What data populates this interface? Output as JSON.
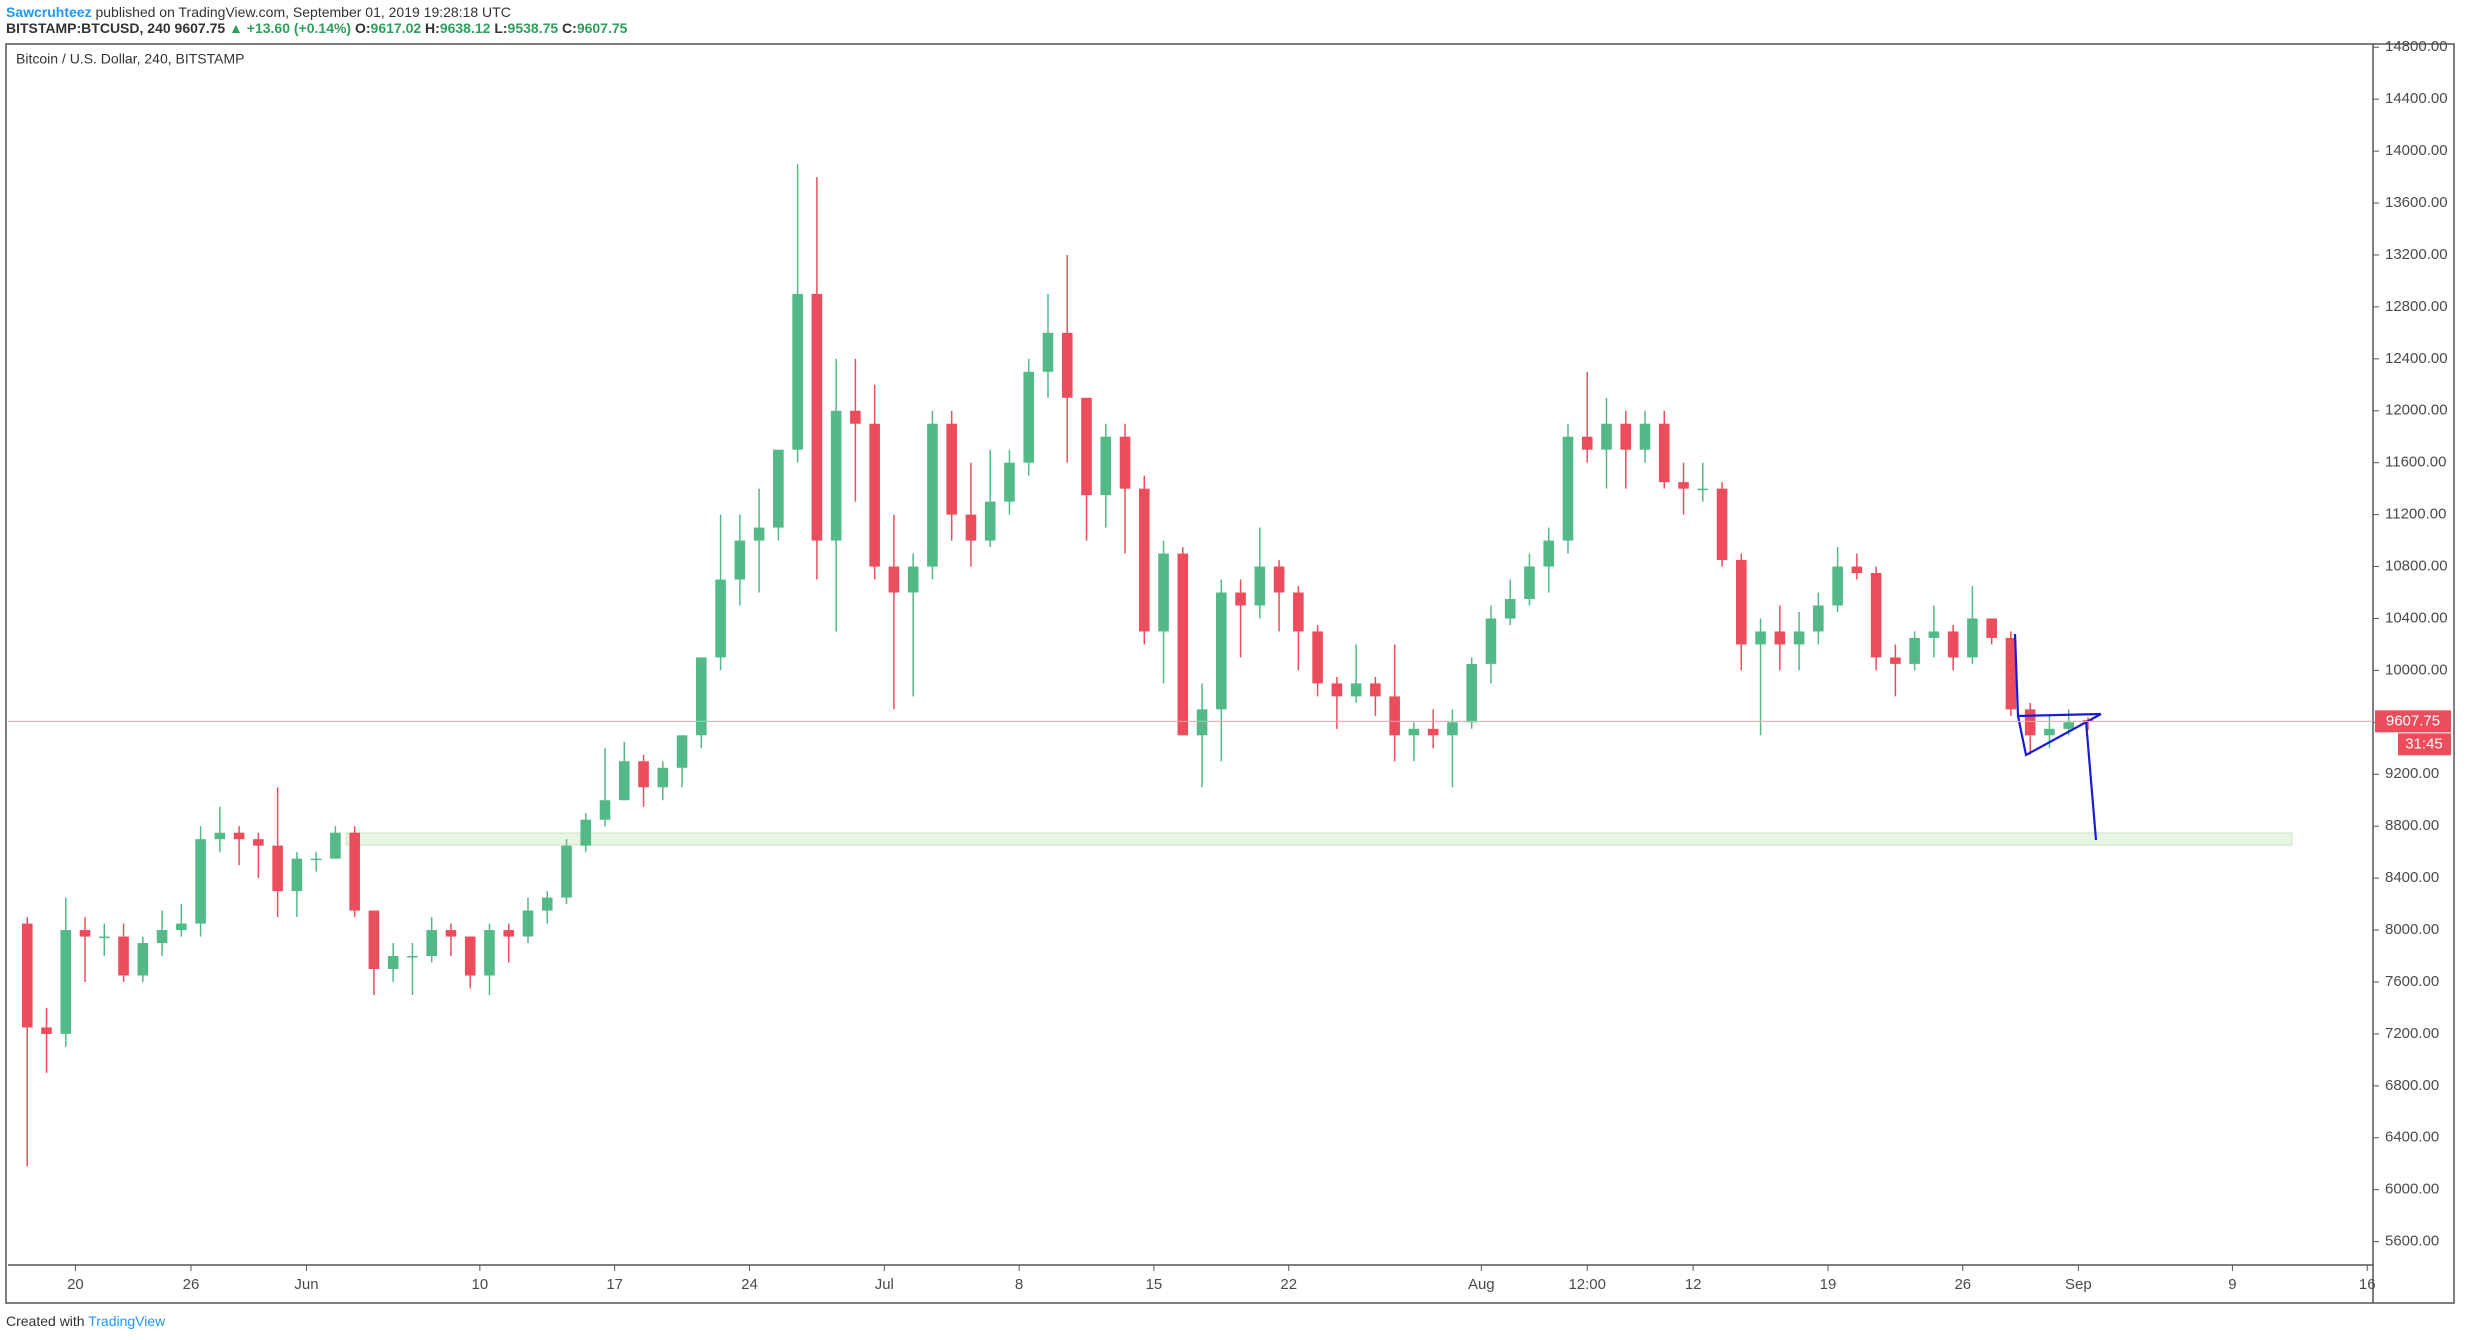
{
  "header": {
    "author": "Sawcruhteez",
    "published": "published on TradingView.com, September 01, 2019 19:28:18 UTC",
    "symbol": "BITSTAMP:BTCUSD, 240",
    "last": "9607.75",
    "change": "▲ +13.60 (+0.14%)",
    "ohlc": [
      {
        "label": "O:",
        "value": "9617.02"
      },
      {
        "label": "H:",
        "value": "9638.12"
      },
      {
        "label": "L:",
        "value": "9538.75"
      },
      {
        "label": "C:",
        "value": "9607.75"
      }
    ]
  },
  "chart_data": {
    "type": "candlestick",
    "title": "Bitcoin / U.S. Dollar, 240, BITSTAMP",
    "up_color": "#53b987",
    "down_color": "#eb4d5c",
    "open": [
      8050,
      7250,
      7200,
      8000,
      7950,
      7950,
      7650,
      7900,
      8000,
      8050,
      8700,
      8750,
      8700,
      8650,
      8300,
      8550,
      8550,
      8750,
      8150,
      7700,
      7800,
      7800,
      8000,
      7950,
      7650,
      8000,
      7950,
      8150,
      8250,
      8650,
      8850,
      9000,
      9300,
      9100,
      9250,
      9500,
      10100,
      10700,
      11000,
      11100,
      11700,
      12900,
      11000,
      12000,
      11900,
      10800,
      10600,
      10800,
      11900,
      11200,
      11000,
      11300,
      11600,
      12300,
      12600,
      12100,
      11350,
      11800,
      11400,
      10300,
      10900,
      9500,
      9700,
      10600,
      10500,
      10800,
      10600,
      10300,
      9900,
      9800,
      9900,
      9800,
      9500,
      9550,
      9500,
      9600,
      10050,
      10400,
      10550,
      10800,
      11000,
      11800,
      11700,
      11900,
      11700,
      11900,
      11450,
      11400,
      11400,
      10850,
      10200,
      10300,
      10200,
      10300,
      10500,
      10800,
      10750,
      10100,
      10050,
      10250,
      10300,
      10100,
      10400,
      10250,
      9700,
      9500,
      9550,
      9617.02
    ],
    "high": [
      8100,
      7400,
      8250,
      8100,
      8050,
      8050,
      7950,
      8150,
      8200,
      8800,
      8950,
      8800,
      8750,
      9100,
      8600,
      8600,
      8800,
      8800,
      8150,
      7900,
      7900,
      8100,
      8050,
      7950,
      8050,
      8050,
      8250,
      8300,
      8700,
      8900,
      9400,
      9450,
      9350,
      9300,
      9500,
      10100,
      11200,
      11200,
      11400,
      11700,
      13900,
      13800,
      12400,
      12400,
      12200,
      11200,
      10900,
      12000,
      12000,
      11600,
      11700,
      11700,
      12400,
      12900,
      13200,
      12100,
      11900,
      11900,
      11500,
      11000,
      10950,
      9900,
      10700,
      10700,
      11100,
      10850,
      10650,
      10350,
      9950,
      10200,
      9950,
      10200,
      9600,
      9700,
      9700,
      10100,
      10500,
      10700,
      10900,
      11100,
      11900,
      12300,
      12100,
      12000,
      12000,
      12000,
      11600,
      11600,
      11450,
      10900,
      10400,
      10500,
      10450,
      10600,
      10950,
      10900,
      10800,
      10200,
      10300,
      10500,
      10350,
      10650,
      10400,
      10300,
      9750,
      9650,
      9700,
      9638.12
    ],
    "low": [
      6180,
      6900,
      7100,
      7600,
      7800,
      7600,
      7600,
      7800,
      7950,
      7950,
      8600,
      8500,
      8400,
      8100,
      8100,
      8450,
      8550,
      8100,
      7500,
      7600,
      7500,
      7750,
      7800,
      7550,
      7500,
      7750,
      7900,
      8050,
      8200,
      8600,
      8800,
      9000,
      8950,
      9000,
      9100,
      9400,
      10000,
      10500,
      10600,
      11000,
      11600,
      10700,
      10300,
      11300,
      10700,
      9700,
      9800,
      10700,
      11000,
      10800,
      10950,
      11200,
      11500,
      12100,
      11600,
      11000,
      11100,
      10900,
      10200,
      9900,
      9500,
      9100,
      9300,
      10100,
      10400,
      10300,
      10000,
      9800,
      9550,
      9750,
      9650,
      9300,
      9300,
      9400,
      9100,
      9550,
      9900,
      10350,
      10500,
      10600,
      10900,
      11600,
      11400,
      11400,
      11600,
      11400,
      11200,
      11300,
      10800,
      10000,
      9500,
      10000,
      10000,
      10200,
      10450,
      10700,
      10000,
      9800,
      10000,
      10100,
      10000,
      10050,
      10200,
      9650,
      9350,
      9400,
      9500,
      9538.75
    ],
    "close": [
      7250,
      7200,
      8000,
      7950,
      7950,
      7650,
      7900,
      8000,
      8050,
      8700,
      8750,
      8700,
      8650,
      8300,
      8550,
      8550,
      8750,
      8150,
      7700,
      7800,
      7800,
      8000,
      7950,
      7650,
      8000,
      7950,
      8150,
      8250,
      8650,
      8850,
      9000,
      9300,
      9100,
      9250,
      9500,
      10100,
      10700,
      11000,
      11100,
      11700,
      12900,
      11000,
      12000,
      11900,
      10800,
      10600,
      10800,
      11900,
      11200,
      11000,
      11300,
      11600,
      12300,
      12600,
      12100,
      11350,
      11800,
      11400,
      10300,
      10900,
      9500,
      9700,
      10600,
      10500,
      10800,
      10600,
      10300,
      9900,
      9800,
      9900,
      9800,
      9500,
      9550,
      9500,
      9600,
      10050,
      10400,
      10550,
      10800,
      11000,
      11800,
      11700,
      11900,
      11700,
      11900,
      11450,
      11400,
      11400,
      10850,
      10200,
      10300,
      10200,
      10300,
      10500,
      10800,
      10750,
      10100,
      10050,
      10250,
      10300,
      10100,
      10400,
      10250,
      9700,
      9500,
      9550,
      9600,
      9607.75
    ],
    "xlim": [
      -0.5,
      122.3
    ],
    "xticks": [
      {
        "value": 3,
        "label": "20"
      },
      {
        "value": 9,
        "label": "26"
      },
      {
        "value": 15,
        "label": "Jun"
      },
      {
        "value": 24,
        "label": "10"
      },
      {
        "value": 31,
        "label": "17"
      },
      {
        "value": 38,
        "label": "24"
      },
      {
        "value": 45,
        "label": "Jul"
      },
      {
        "value": 52,
        "label": "8"
      },
      {
        "value": 59,
        "label": "15"
      },
      {
        "value": 66,
        "label": "22"
      },
      {
        "value": 76,
        "label": "Aug"
      },
      {
        "value": 81.5,
        "label": "12:00"
      },
      {
        "value": 87,
        "label": "12"
      },
      {
        "value": 94,
        "label": "19"
      },
      {
        "value": 101,
        "label": "26"
      },
      {
        "value": 107,
        "label": "Sep"
      },
      {
        "value": 115,
        "label": "9"
      },
      {
        "value": 122,
        "label": "16"
      }
    ],
    "ylim": [
      5420,
      14825
    ],
    "yticks": [
      {
        "value": 5600,
        "label": "5600.00"
      },
      {
        "value": 6000,
        "label": "6000.00"
      },
      {
        "value": 6400,
        "label": "6400.00"
      },
      {
        "value": 6800,
        "label": "6800.00"
      },
      {
        "value": 7200,
        "label": "7200.00"
      },
      {
        "value": 7600,
        "label": "7600.00"
      },
      {
        "value": 8000,
        "label": "8000.00"
      },
      {
        "value": 8400,
        "label": "8400.00"
      },
      {
        "value": 8800,
        "label": "8800.00"
      },
      {
        "value": 9200,
        "label": "9200.00"
      },
      {
        "value": 9600,
        "label": "9600.00"
      },
      {
        "value": 10000,
        "label": "10000.00"
      },
      {
        "value": 10400,
        "label": "10400.00"
      },
      {
        "value": 10800,
        "label": "10800.00"
      },
      {
        "value": 11200,
        "label": "11200.00"
      },
      {
        "value": 11600,
        "label": "11600.00"
      },
      {
        "value": 12000,
        "label": "12000.00"
      },
      {
        "value": 12400,
        "label": "12400.00"
      },
      {
        "value": 12800,
        "label": "12800.00"
      },
      {
        "value": 13200,
        "label": "13200.00"
      },
      {
        "value": 13600,
        "label": "13600.00"
      },
      {
        "value": 14000,
        "label": "14000.00"
      },
      {
        "value": 14400,
        "label": "14400.00"
      },
      {
        "value": 14800,
        "label": "14800.00"
      }
    ],
    "last_price": 9607.75,
    "countdown": "31:45"
  },
  "footer": {
    "text": "Created with",
    "brand": "TradingView"
  }
}
